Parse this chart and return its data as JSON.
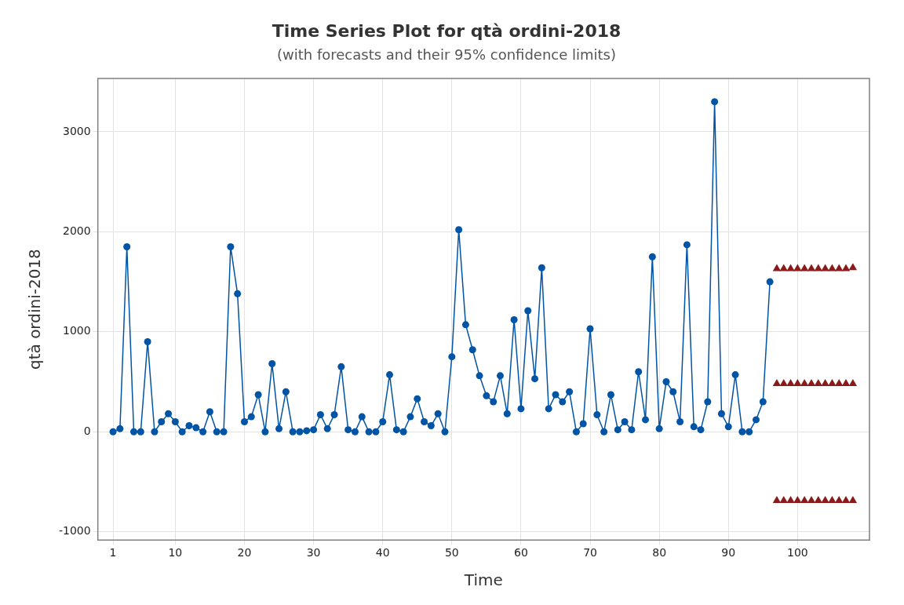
{
  "chart_data": {
    "type": "line",
    "title": "Time Series Plot for qtà ordini-2018",
    "subtitle": "(with forecasts and their 95% confidence limits)",
    "xlabel": "Time",
    "ylabel": "qtà ordini-2018",
    "xlim": [
      -1.2,
      110.4
    ],
    "xticks": [
      1,
      10,
      20,
      30,
      40,
      50,
      60,
      70,
      80,
      90,
      100
    ],
    "ylim": [
      -1083,
      3533
    ],
    "yticks": [
      -1000,
      0,
      1000,
      2000,
      3000
    ],
    "grid": true,
    "series": [
      {
        "marker": "circle",
        "color": "#0054a6",
        "x": [
          1,
          2,
          3,
          4,
          5,
          6,
          7,
          8,
          9,
          10,
          11,
          12,
          13,
          14,
          15,
          16,
          17,
          18,
          19,
          20,
          21,
          22,
          23,
          24,
          25,
          26,
          27,
          28,
          29,
          30,
          31,
          32,
          33,
          34,
          35,
          36,
          37,
          38,
          39,
          40,
          41,
          42,
          43,
          44,
          45,
          46,
          47,
          48,
          49,
          50,
          51,
          52,
          53,
          54,
          55,
          56,
          57,
          58,
          59,
          60,
          61,
          62,
          63,
          64,
          65,
          66,
          67,
          68,
          69,
          70,
          71,
          72,
          73,
          74,
          75,
          76,
          77,
          78,
          79,
          80,
          81,
          82,
          83,
          84,
          85,
          86,
          87,
          88,
          89,
          90,
          91,
          92,
          93,
          94,
          95,
          96
        ],
        "values": [
          0,
          30,
          1850,
          0,
          0,
          900,
          0,
          100,
          180,
          100,
          0,
          60,
          40,
          0,
          200,
          0,
          0,
          1850,
          1380,
          100,
          150,
          370,
          0,
          680,
          30,
          400,
          0,
          0,
          10,
          20,
          170,
          30,
          170,
          650,
          20,
          0,
          150,
          0,
          0,
          100,
          570,
          20,
          0,
          150,
          330,
          100,
          60,
          180,
          0,
          750,
          2020,
          1070,
          820,
          560,
          360,
          300,
          560,
          180,
          1120,
          230,
          1210,
          530,
          1640,
          230,
          370,
          300,
          400,
          0,
          80,
          1030,
          170,
          0,
          370,
          20,
          100,
          20,
          600,
          120,
          1750,
          30,
          500,
          400,
          100,
          1870,
          50,
          20,
          300,
          3300,
          180,
          50,
          570,
          0,
          0,
          120,
          300,
          1500
        ]
      },
      {
        "type": "scatter",
        "marker": "triangle",
        "color": "#8b1a1a",
        "x": [
          97,
          98,
          99,
          100,
          101,
          102,
          103,
          104,
          105,
          106,
          107,
          108
        ],
        "values": [
          1630,
          1630,
          1630,
          1630,
          1630,
          1630,
          1630,
          1630,
          1630,
          1630,
          1630,
          1640
        ]
      },
      {
        "type": "scatter",
        "marker": "triangle",
        "color": "#8b1a1a",
        "x": [
          97,
          98,
          99,
          100,
          101,
          102,
          103,
          104,
          105,
          106,
          107,
          108
        ],
        "values": [
          480,
          480,
          480,
          480,
          480,
          480,
          480,
          480,
          480,
          480,
          480,
          480
        ]
      },
      {
        "type": "scatter",
        "marker": "triangle",
        "color": "#8b1a1a",
        "x": [
          97,
          98,
          99,
          100,
          101,
          102,
          103,
          104,
          105,
          106,
          107,
          108
        ],
        "values": [
          -690,
          -690,
          -690,
          -690,
          -690,
          -690,
          -690,
          -690,
          -690,
          -690,
          -690,
          -690
        ]
      }
    ]
  }
}
